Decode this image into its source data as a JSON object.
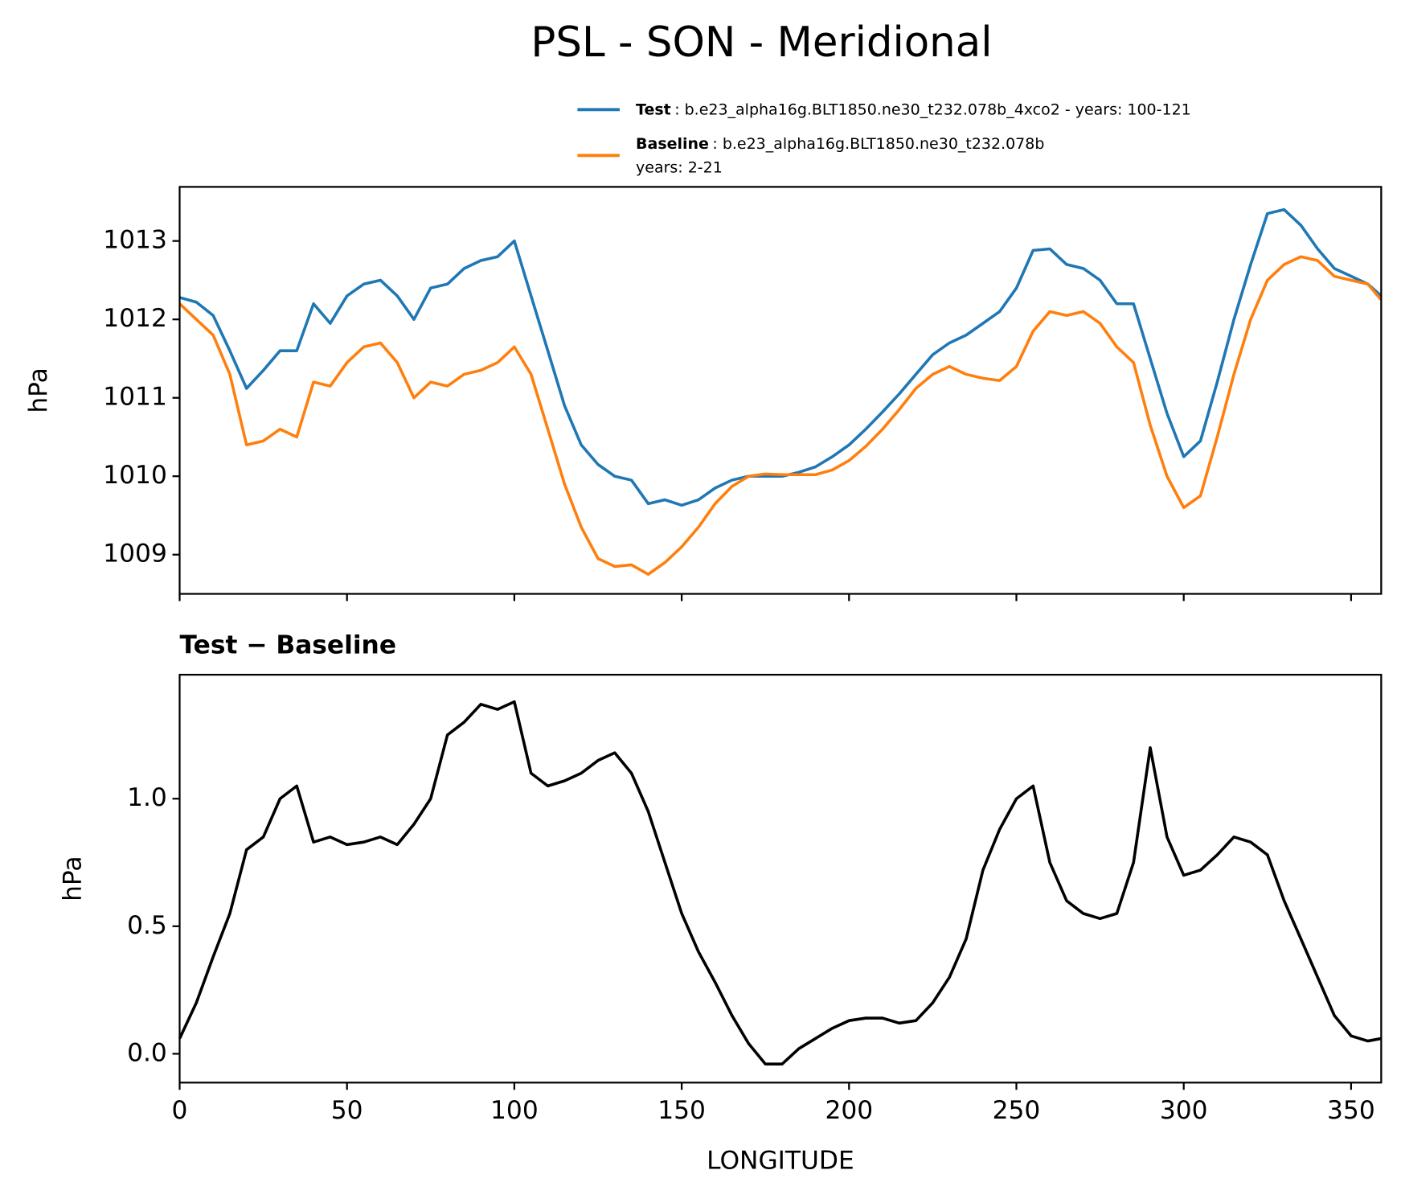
{
  "title": "PSL - SON - Meridional",
  "chart_data": [
    {
      "type": "line",
      "ylabel": "hPa",
      "x": [
        0,
        5,
        10,
        15,
        20,
        25,
        30,
        35,
        40,
        45,
        50,
        55,
        60,
        65,
        70,
        75,
        80,
        85,
        90,
        95,
        100,
        105,
        110,
        115,
        120,
        125,
        130,
        135,
        140,
        145,
        150,
        155,
        160,
        165,
        170,
        175,
        180,
        185,
        190,
        195,
        200,
        205,
        210,
        215,
        220,
        225,
        230,
        235,
        240,
        245,
        250,
        255,
        260,
        265,
        270,
        275,
        280,
        285,
        290,
        295,
        300,
        305,
        310,
        315,
        320,
        325,
        330,
        335,
        340,
        345,
        350,
        355,
        359
      ],
      "series": [
        {
          "name": "Test",
          "description": ": b.e23_alpha16g.BLT1850.ne30_t232.078b_4xco2 - years: 100-121",
          "color": "#1f77b4",
          "values": [
            1012.28,
            1012.22,
            1012.05,
            1011.6,
            1011.12,
            1011.35,
            1011.6,
            1011.6,
            1012.2,
            1011.95,
            1012.3,
            1012.45,
            1012.5,
            1012.3,
            1012.0,
            1012.4,
            1012.45,
            1012.65,
            1012.75,
            1012.8,
            1013.0,
            1012.3,
            1011.6,
            1010.9,
            1010.4,
            1010.15,
            1010.0,
            1009.95,
            1009.65,
            1009.7,
            1009.63,
            1009.7,
            1009.85,
            1009.95,
            1010.0,
            1010.0,
            1010.0,
            1010.05,
            1010.12,
            1010.25,
            1010.4,
            1010.6,
            1010.82,
            1011.05,
            1011.3,
            1011.55,
            1011.7,
            1011.8,
            1011.95,
            1012.1,
            1012.4,
            1012.88,
            1012.9,
            1012.7,
            1012.65,
            1012.5,
            1012.2,
            1012.2,
            1011.5,
            1010.8,
            1010.25,
            1010.45,
            1011.2,
            1012.0,
            1012.7,
            1013.35,
            1013.4,
            1013.2,
            1012.9,
            1012.65,
            1012.55,
            1012.45,
            1012.3
          ]
        },
        {
          "name": "Baseline",
          "description": ": b.e23_alpha16g.BLT1850.ne30_t232.078b",
          "description_line2": "years: 2-21",
          "color": "#ff7f0e",
          "values": [
            1012.2,
            1012.0,
            1011.8,
            1011.3,
            1010.4,
            1010.45,
            1010.6,
            1010.5,
            1011.2,
            1011.15,
            1011.45,
            1011.65,
            1011.7,
            1011.45,
            1011.0,
            1011.2,
            1011.15,
            1011.3,
            1011.35,
            1011.45,
            1011.65,
            1011.3,
            1010.6,
            1009.9,
            1009.35,
            1008.95,
            1008.85,
            1008.87,
            1008.75,
            1008.9,
            1009.1,
            1009.35,
            1009.65,
            1009.87,
            1010.0,
            1010.03,
            1010.02,
            1010.02,
            1010.02,
            1010.08,
            1010.2,
            1010.38,
            1010.6,
            1010.85,
            1011.12,
            1011.3,
            1011.4,
            1011.3,
            1011.25,
            1011.22,
            1011.4,
            1011.85,
            1012.1,
            1012.05,
            1012.1,
            1011.95,
            1011.65,
            1011.45,
            1010.65,
            1010.0,
            1009.6,
            1009.75,
            1010.5,
            1011.3,
            1012.0,
            1012.5,
            1012.7,
            1012.8,
            1012.75,
            1012.55,
            1012.5,
            1012.45,
            1012.25
          ]
        }
      ],
      "xlim": [
        0,
        359
      ],
      "ylim": [
        1008.5,
        1013.69
      ],
      "yticks": [
        1009,
        1010,
        1011,
        1012,
        1013
      ]
    },
    {
      "type": "line",
      "title": "Test − Baseline",
      "ylabel": "hPa",
      "xlabel": "LONGITUDE",
      "x": [
        0,
        5,
        10,
        15,
        20,
        25,
        30,
        35,
        40,
        45,
        50,
        55,
        60,
        65,
        70,
        75,
        80,
        85,
        90,
        95,
        100,
        105,
        110,
        115,
        120,
        125,
        130,
        135,
        140,
        145,
        150,
        155,
        160,
        165,
        170,
        175,
        180,
        185,
        190,
        195,
        200,
        205,
        210,
        215,
        220,
        225,
        230,
        235,
        240,
        245,
        250,
        255,
        260,
        265,
        270,
        275,
        280,
        285,
        290,
        295,
        300,
        305,
        310,
        315,
        320,
        325,
        330,
        335,
        340,
        345,
        350,
        355,
        359
      ],
      "series": [
        {
          "color": "#000000",
          "values": [
            0.06,
            0.2,
            0.38,
            0.55,
            0.8,
            0.85,
            1.0,
            1.05,
            0.83,
            0.85,
            0.82,
            0.83,
            0.85,
            0.82,
            0.9,
            1.0,
            1.25,
            1.3,
            1.37,
            1.35,
            1.38,
            1.1,
            1.05,
            1.07,
            1.1,
            1.15,
            1.18,
            1.1,
            0.95,
            0.75,
            0.55,
            0.4,
            0.28,
            0.15,
            0.04,
            -0.04,
            -0.04,
            0.02,
            0.06,
            0.1,
            0.13,
            0.14,
            0.14,
            0.12,
            0.13,
            0.2,
            0.3,
            0.45,
            0.72,
            0.88,
            1.0,
            1.05,
            0.75,
            0.6,
            0.55,
            0.53,
            0.55,
            0.75,
            1.2,
            0.85,
            0.7,
            0.72,
            0.78,
            0.85,
            0.83,
            0.78,
            0.6,
            0.45,
            0.3,
            0.15,
            0.07,
            0.05,
            0.06
          ]
        }
      ],
      "xlim": [
        0,
        359
      ],
      "ylim": [
        -0.113,
        1.486
      ],
      "xticks": [
        0,
        50,
        100,
        150,
        200,
        250,
        300,
        350
      ],
      "yticks": [
        {
          "value": 0,
          "label": "0.0"
        },
        {
          "value": 0.5,
          "label": "0.5"
        },
        {
          "value": 1,
          "label": "1.0"
        }
      ]
    }
  ]
}
